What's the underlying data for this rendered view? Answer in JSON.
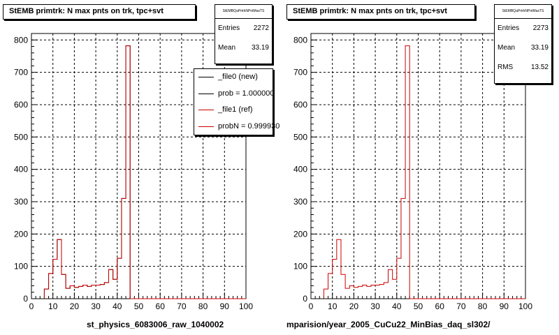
{
  "chart_data": [
    {
      "type": "bar",
      "title": "StEMB primtrk: N max pnts on trk, tpc+svt",
      "xlabel": "st_physics_6083006_raw_1040002",
      "ylabel": "",
      "xlim": [
        0,
        100
      ],
      "ylim": [
        0,
        820
      ],
      "bin_width": 2,
      "x_ticks": [
        0,
        10,
        20,
        30,
        40,
        50,
        60,
        70,
        80,
        90,
        100
      ],
      "y_ticks": [
        0,
        100,
        200,
        300,
        400,
        500,
        600,
        700,
        800
      ],
      "grid": true,
      "series": [
        {
          "name": "_file0 (new)",
          "color": "#000000",
          "bins_x": [
            6,
            8,
            10,
            12,
            14,
            16,
            18,
            20,
            22,
            24,
            26,
            28,
            30,
            32,
            34,
            36,
            38,
            40,
            42,
            44
          ],
          "values": [
            30,
            78,
            122,
            183,
            75,
            32,
            40,
            35,
            38,
            42,
            38,
            42,
            42,
            44,
            50,
            90,
            60,
            125,
            310,
            782
          ]
        },
        {
          "name": "_file1 (ref)",
          "color": "#cc0000",
          "bins_x": [
            6,
            8,
            10,
            12,
            14,
            16,
            18,
            20,
            22,
            24,
            26,
            28,
            30,
            32,
            34,
            36,
            38,
            40,
            42,
            44
          ],
          "values": [
            30,
            78,
            122,
            183,
            75,
            32,
            40,
            35,
            38,
            42,
            38,
            42,
            42,
            44,
            50,
            90,
            60,
            125,
            310,
            782
          ]
        }
      ],
      "stats": {
        "name": "StEMBQaPrtrkNPntMaxTS",
        "entries": "2272",
        "mean": "33.19"
      },
      "legend": [
        {
          "label": "_file0 (new)",
          "color": "#000000"
        },
        {
          "label": "prob = 1.000000",
          "color": "#000000"
        },
        {
          "label": "_file1 (ref)",
          "color": "#cc0000"
        },
        {
          "label": "probN = 0.999930",
          "color": "#cc0000"
        }
      ]
    },
    {
      "type": "bar",
      "title": "StEMB primtrk: N max pnts on trk, tpc+svt",
      "xlabel": "mparision/year_2005_CuCu22_MinBias_daq_sl302/",
      "ylabel": "",
      "xlim": [
        0,
        100
      ],
      "ylim": [
        0,
        820
      ],
      "bin_width": 2,
      "x_ticks": [
        0,
        10,
        20,
        30,
        40,
        50,
        60,
        70,
        80,
        90,
        100
      ],
      "y_ticks": [
        0,
        100,
        200,
        300,
        400,
        500,
        600,
        700,
        800
      ],
      "grid": true,
      "series": [
        {
          "name": "",
          "color": "#cc0000",
          "bins_x": [
            6,
            8,
            10,
            12,
            14,
            16,
            18,
            20,
            22,
            24,
            26,
            28,
            30,
            32,
            34,
            36,
            38,
            40,
            42,
            44
          ],
          "values": [
            30,
            78,
            122,
            183,
            75,
            32,
            40,
            35,
            38,
            42,
            38,
            42,
            42,
            44,
            50,
            90,
            60,
            125,
            310,
            782
          ]
        }
      ],
      "stats": {
        "name": "StEMBQaPrtrkNPntMaxTS",
        "entries": "2273",
        "mean": "33.19",
        "rms": "13.52"
      }
    }
  ],
  "labels": {
    "entries": "Entries",
    "mean": "Mean",
    "rms": "RMS"
  }
}
